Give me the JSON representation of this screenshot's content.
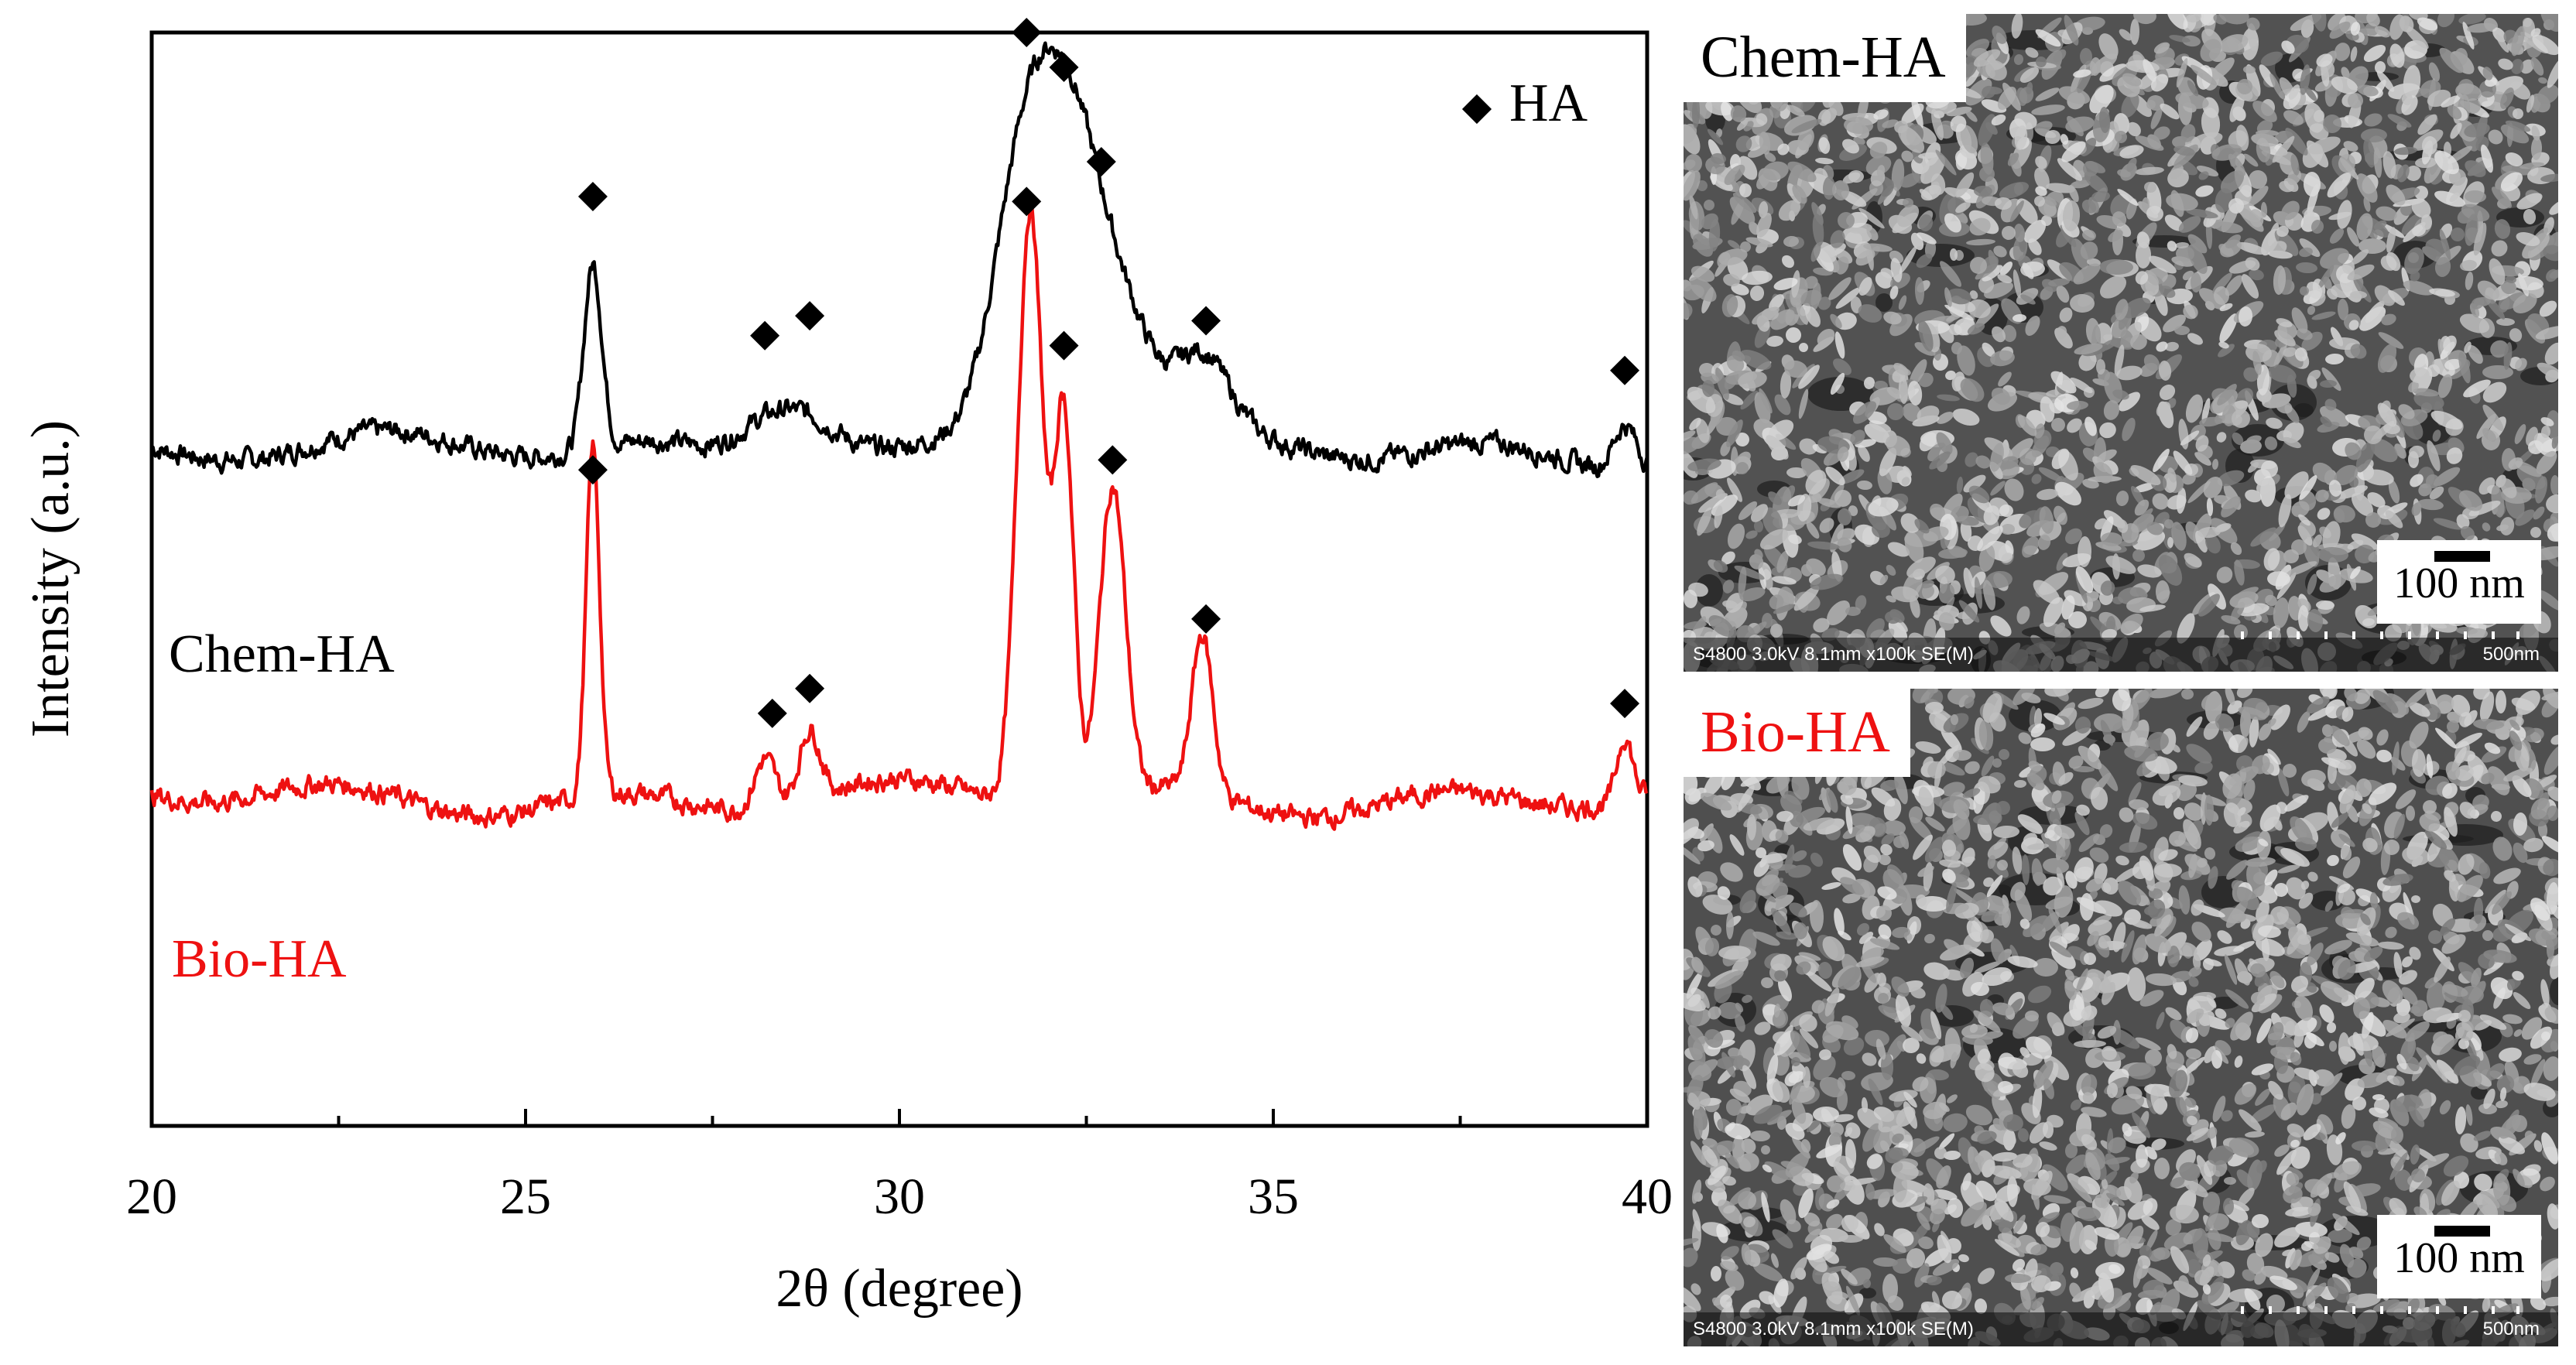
{
  "chart_data": {
    "type": "line",
    "xlabel": "2θ (degree)",
    "ylabel": "Intensity (a.u.)",
    "xlim": [
      20,
      40
    ],
    "ylim": [
      0,
      110
    ],
    "x_ticks": [
      "20",
      "25",
      "30",
      "35",
      "40"
    ],
    "grid": false,
    "legend": {
      "marker": "◆",
      "label": "HA",
      "position": "top-right"
    },
    "series": [
      {
        "name": "Chem-HA",
        "color": "#000000",
        "label": "Chem-HA",
        "baseline": 68,
        "peaks": [
          [
            25.9,
            18.5,
            0.12
          ],
          [
            28.2,
            3.2,
            0.4
          ],
          [
            28.8,
            4.5,
            0.45
          ],
          [
            31.7,
            30,
            0.42
          ],
          [
            32.3,
            22,
            0.38
          ],
          [
            32.9,
            14,
            0.45
          ],
          [
            34.05,
            7.5,
            0.35
          ],
          [
            39.7,
            4.5,
            0.15
          ]
        ],
        "markers": [
          [
            25.9,
            93.5
          ],
          [
            28.2,
            79.5
          ],
          [
            28.8,
            81.5
          ],
          [
            31.7,
            110
          ],
          [
            32.2,
            106.5
          ],
          [
            32.7,
            97
          ],
          [
            34.1,
            81
          ],
          [
            39.7,
            76
          ]
        ]
      },
      {
        "name": "Bio-HA",
        "color": "#ee1111",
        "label": "Bio-HA",
        "baseline": 33,
        "peaks": [
          [
            25.9,
            35,
            0.09
          ],
          [
            28.2,
            5,
            0.14
          ],
          [
            28.8,
            7,
            0.14
          ],
          [
            31.75,
            60,
            0.17
          ],
          [
            32.2,
            39,
            0.13
          ],
          [
            32.85,
            31,
            0.17
          ],
          [
            34.05,
            16,
            0.14
          ],
          [
            39.7,
            6.5,
            0.1
          ]
        ],
        "markers": [
          [
            25.9,
            66
          ],
          [
            28.3,
            41.5
          ],
          [
            28.8,
            44
          ],
          [
            31.7,
            93
          ],
          [
            32.2,
            78.5
          ],
          [
            32.85,
            67
          ],
          [
            34.1,
            51
          ],
          [
            39.7,
            42.5
          ]
        ]
      }
    ]
  },
  "sem_images": [
    {
      "label": "Chem-HA",
      "label_color": "#000000",
      "scale_bar": "100 nm",
      "info_left": "S4800 3.0kV 8.1mm x100k SE(M)",
      "info_right": "500nm"
    },
    {
      "label": "Bio-HA",
      "label_color": "#ee1111",
      "scale_bar": "100 nm",
      "info_left": "S4800 3.0kV 8.1mm x100k SE(M)",
      "info_right": "500nm"
    }
  ]
}
